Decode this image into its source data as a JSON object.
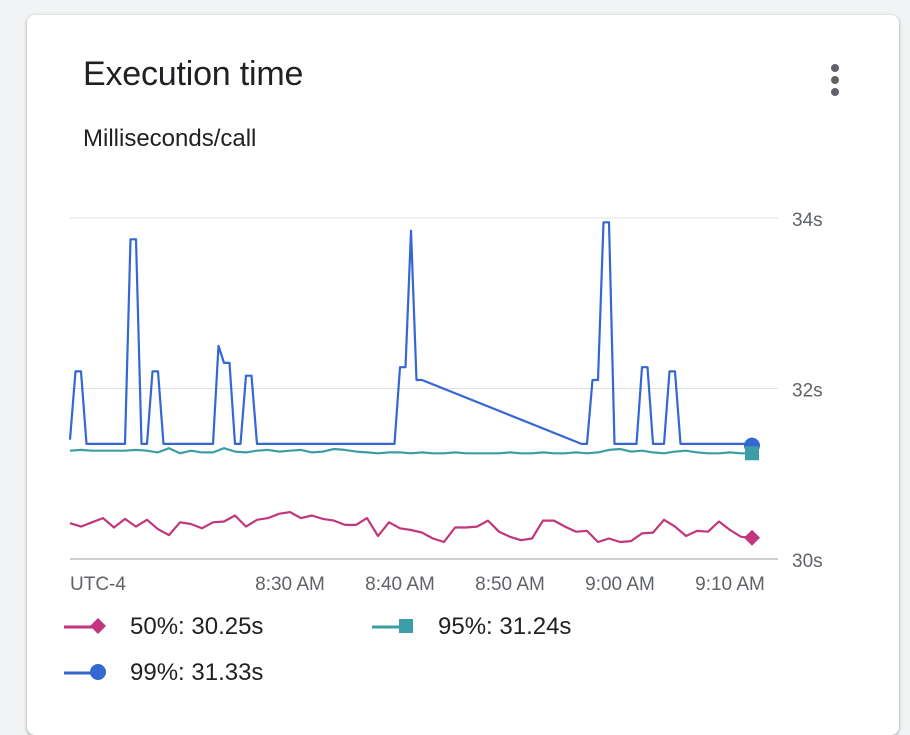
{
  "card": {
    "title": "Execution time",
    "subtitle": "Milliseconds/call"
  },
  "icons": {
    "menu": "more-vert-icon"
  },
  "colors": {
    "p50": "#c2367f",
    "p95": "#3d9da6",
    "p99": "#3467d1",
    "grid": "#e0e0e0",
    "axis": "#5f6368"
  },
  "legend": [
    {
      "marker": "diamond",
      "label": "50%: 30.25s"
    },
    {
      "marker": "square",
      "label": "95%: 31.24s"
    },
    {
      "marker": "circle",
      "label": "99%: 31.33s"
    }
  ],
  "chart_data": {
    "type": "line",
    "timezone_label": "UTC-4",
    "x_tick_labels": [
      "8:30 AM",
      "8:40 AM",
      "8:50 AM",
      "9:00 AM",
      "9:10 AM"
    ],
    "x_tick_minutes": [
      30,
      40,
      50,
      60,
      70
    ],
    "xlim_minutes": [
      10,
      72
    ],
    "y_tick_labels": [
      "34s",
      "32s",
      "30s"
    ],
    "y_tick_values": [
      34,
      32,
      30
    ],
    "ylim": [
      30,
      34
    ],
    "grid": true,
    "legend_position": "bottom",
    "series": [
      {
        "name": "99%",
        "color_key": "p99",
        "marker": "circle",
        "x": [
          10,
          10.5,
          11,
          11.5,
          12,
          12.5,
          15,
          15.5,
          16,
          16.5,
          17,
          17.5,
          18,
          18.5,
          19,
          19.5,
          20,
          20.5,
          21,
          21.5,
          22,
          22.5,
          23,
          23.5,
          24,
          24.5,
          25,
          25.5,
          26,
          26.5,
          27,
          27.5,
          28,
          28.5,
          29,
          29.5,
          30,
          30.5,
          31,
          31.5,
          32,
          32.5,
          33,
          33.5,
          34,
          34.5,
          35,
          35.5,
          36,
          36.5,
          37,
          37.5,
          38,
          38.5,
          39,
          39.5,
          40,
          40.5,
          41,
          41.5,
          42,
          56.5,
          57,
          57.5,
          58,
          58.5,
          59,
          59.5,
          60,
          60.5,
          61,
          61.5,
          62,
          62.5,
          63,
          63.5,
          64,
          64.5,
          65,
          65.5,
          66,
          66.5,
          67,
          67.5,
          68,
          68.5,
          69,
          69.5,
          70,
          70.5,
          71,
          71.5,
          72
        ],
        "values": [
          31.4,
          32.2,
          32.2,
          31.35,
          31.35,
          31.35,
          31.35,
          33.75,
          33.75,
          31.35,
          31.35,
          32.2,
          32.2,
          31.35,
          31.35,
          31.35,
          31.35,
          31.35,
          31.35,
          31.35,
          31.35,
          31.35,
          31.35,
          32.5,
          32.3,
          32.3,
          31.35,
          31.35,
          32.15,
          32.15,
          31.35,
          31.35,
          31.35,
          31.35,
          31.35,
          31.35,
          31.35,
          31.35,
          31.35,
          31.35,
          31.35,
          31.35,
          31.35,
          31.35,
          31.35,
          31.35,
          31.35,
          31.35,
          31.35,
          31.35,
          31.35,
          31.35,
          31.35,
          31.35,
          31.35,
          31.35,
          32.25,
          32.25,
          33.85,
          32.1,
          32.1,
          31.35,
          31.35,
          32.1,
          32.1,
          33.95,
          33.95,
          31.35,
          31.35,
          31.35,
          31.35,
          31.35,
          32.25,
          32.25,
          31.35,
          31.35,
          31.35,
          32.2,
          32.2,
          31.35,
          31.35,
          31.35,
          31.35,
          31.35,
          31.35,
          31.35,
          31.35,
          31.35,
          31.35,
          31.35,
          31.35,
          31.35,
          31.33
        ]
      },
      {
        "name": "95%",
        "color_key": "p95",
        "marker": "square",
        "x": [
          10,
          11,
          12,
          13,
          14,
          15,
          16,
          17,
          18,
          19,
          20,
          21,
          22,
          23,
          24,
          25,
          26,
          27,
          28,
          29,
          30,
          31,
          32,
          33,
          34,
          35,
          36,
          37,
          38,
          39,
          40,
          41,
          42,
          43,
          44,
          45,
          46,
          47,
          48,
          49,
          50,
          51,
          52,
          53,
          54,
          55,
          56,
          57,
          58,
          59,
          60,
          61,
          62,
          63,
          64,
          65,
          66,
          67,
          68,
          69,
          70,
          71,
          72
        ],
        "values": [
          31.27,
          31.28,
          31.27,
          31.27,
          31.27,
          31.27,
          31.28,
          31.27,
          31.25,
          31.3,
          31.24,
          31.27,
          31.25,
          31.25,
          31.3,
          31.26,
          31.25,
          31.27,
          31.28,
          31.26,
          31.27,
          31.28,
          31.25,
          31.26,
          31.29,
          31.28,
          31.26,
          31.25,
          31.24,
          31.25,
          31.25,
          31.24,
          31.25,
          31.24,
          31.24,
          31.25,
          31.24,
          31.24,
          31.24,
          31.24,
          31.25,
          31.24,
          31.24,
          31.25,
          31.24,
          31.24,
          31.25,
          31.24,
          31.25,
          31.28,
          31.29,
          31.26,
          31.27,
          31.25,
          31.24,
          31.26,
          31.27,
          31.25,
          31.24,
          31.24,
          31.25,
          31.24,
          31.24
        ]
      },
      {
        "name": "50%",
        "color_key": "p50",
        "marker": "diamond",
        "x": [
          10,
          11,
          12,
          13,
          14,
          15,
          16,
          17,
          18,
          19,
          20,
          21,
          22,
          23,
          24,
          25,
          26,
          27,
          28,
          29,
          30,
          31,
          32,
          33,
          34,
          35,
          36,
          37,
          38,
          39,
          40,
          41,
          42,
          43,
          44,
          45,
          46,
          47,
          48,
          49,
          50,
          51,
          52,
          53,
          54,
          55,
          56,
          57,
          58,
          59,
          60,
          61,
          62,
          63,
          64,
          65,
          66,
          67,
          68,
          69,
          70,
          71,
          72
        ],
        "values": [
          30.42,
          30.38,
          30.43,
          30.48,
          30.37,
          30.47,
          30.38,
          30.46,
          30.35,
          30.28,
          30.43,
          30.41,
          30.36,
          30.43,
          30.44,
          30.51,
          30.38,
          30.46,
          30.48,
          30.53,
          30.55,
          30.48,
          30.51,
          30.47,
          30.45,
          30.4,
          30.4,
          30.48,
          30.27,
          30.43,
          30.36,
          30.34,
          30.31,
          30.24,
          30.2,
          30.37,
          30.37,
          30.38,
          30.45,
          30.32,
          30.26,
          30.22,
          30.24,
          30.45,
          30.45,
          30.38,
          30.32,
          30.33,
          30.2,
          30.24,
          30.2,
          30.21,
          30.3,
          30.31,
          30.46,
          30.38,
          30.27,
          30.33,
          30.32,
          30.44,
          30.34,
          30.26,
          30.25
        ]
      }
    ]
  }
}
